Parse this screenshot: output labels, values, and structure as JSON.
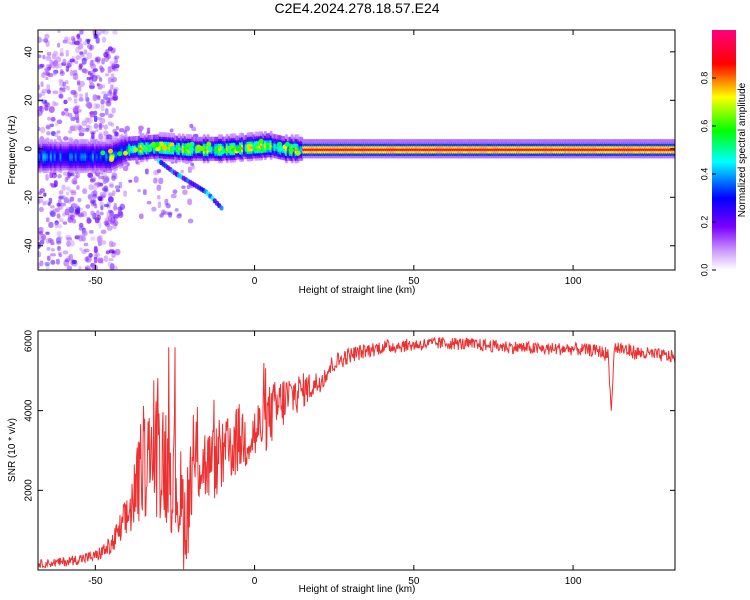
{
  "figure_title": "C2E4.2024.278.18.57.E24",
  "colors": {
    "snr_line": "#ef3030",
    "frame": "#000000",
    "background": "#ffffff"
  },
  "chart_data": [
    {
      "type": "heatmap",
      "title": "C2E4.2024.278.18.57.E24",
      "xlabel": "Height of straight line (km)",
      "ylabel": "Frequency (Hz)",
      "xlim": [
        -68,
        132
      ],
      "ylim": [
        -50,
        49
      ],
      "xticks": [
        -50,
        0,
        50,
        100
      ],
      "yticks": [
        -40,
        -20,
        0,
        20,
        40
      ],
      "colorbar": {
        "label": "Normalized spectral amplitude",
        "range": [
          0.0,
          1.0
        ],
        "ticks": [
          0.0,
          0.2,
          0.4,
          0.6,
          0.8
        ],
        "colormap": [
          "#ffffff",
          "#7b00ff",
          "#0000ff",
          "#00ffff",
          "#00ff00",
          "#ffff00",
          "#ff0000",
          "#ff0080"
        ]
      },
      "ridge": [
        {
          "x": -45,
          "f": -3
        },
        {
          "x": -40,
          "f": 0
        },
        {
          "x": -30,
          "f": 1
        },
        {
          "x": -20,
          "f": 0
        },
        {
          "x": -10,
          "f": 0
        },
        {
          "x": 0,
          "f": 1
        },
        {
          "x": 5,
          "f": 1.5
        },
        {
          "x": 10,
          "f": 0
        },
        {
          "x": 20,
          "f": 0
        },
        {
          "x": 132,
          "f": 0
        }
      ],
      "secondary_branch": [
        {
          "x": -30,
          "f": -5
        },
        {
          "x": -25,
          "f": -10
        },
        {
          "x": -15,
          "f": -18
        },
        {
          "x": -10,
          "f": -25
        }
      ]
    },
    {
      "type": "line",
      "xlabel": "Height of straight line (km)",
      "ylabel": "SNR (10 * v/v)",
      "xlim": [
        -68,
        132
      ],
      "ylim": [
        0,
        6000
      ],
      "xticks": [
        -50,
        0,
        50,
        100
      ],
      "yticks": [
        2000,
        4000,
        6000
      ],
      "series": [
        {
          "name": "SNR",
          "x": [
            -68,
            -60,
            -50,
            -45,
            -40,
            -35,
            -30,
            -25,
            -22,
            -18,
            -15,
            -10,
            -5,
            0,
            5,
            10,
            15,
            20,
            25,
            30,
            40,
            50,
            60,
            70,
            80,
            90,
            100,
            108,
            111,
            112,
            113,
            120,
            132
          ],
          "y": [
            150,
            200,
            350,
            600,
            1300,
            2600,
            3000,
            2400,
            1200,
            2900,
            2600,
            2800,
            3300,
            3400,
            3900,
            4300,
            4500,
            4700,
            5200,
            5400,
            5600,
            5650,
            5700,
            5650,
            5600,
            5550,
            5550,
            5500,
            5400,
            4000,
            5600,
            5450,
            5350
          ],
          "noise_amplitude": [
            100,
            120,
            150,
            250,
            600,
            1300,
            1700,
            1600,
            1300,
            1300,
            1000,
            900,
            900,
            800,
            800,
            650,
            450,
            300,
            250,
            200,
            180,
            160,
            160,
            160,
            160,
            160,
            160,
            160,
            200,
            0,
            200,
            180,
            160
          ]
        }
      ]
    }
  ]
}
